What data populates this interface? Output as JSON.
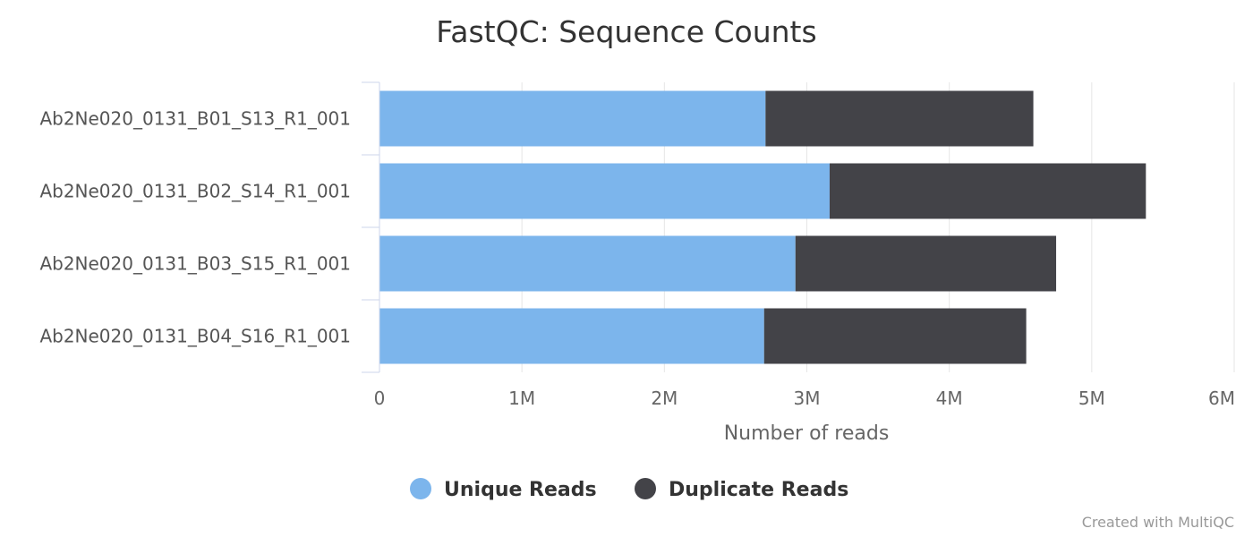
{
  "chart_data": {
    "type": "bar",
    "orientation": "horizontal",
    "stacked": true,
    "title": "FastQC: Sequence Counts",
    "xlabel": "Number of reads",
    "ylabel": "",
    "xlim": [
      0,
      6000000
    ],
    "x_ticks": [
      0,
      1000000,
      2000000,
      3000000,
      4000000,
      5000000,
      6000000
    ],
    "x_tick_labels": [
      "0",
      "1M",
      "2M",
      "3M",
      "4M",
      "5M",
      "6M"
    ],
    "grid": true,
    "legend_position": "bottom",
    "categories": [
      "Ab2Ne020_0131_B01_S13_R1_001",
      "Ab2Ne020_0131_B02_S14_R1_001",
      "Ab2Ne020_0131_B03_S15_R1_001",
      "Ab2Ne020_0131_B04_S16_R1_001"
    ],
    "series": [
      {
        "name": "Unique Reads",
        "color": "#7cb5ec",
        "values": [
          2710000,
          3160000,
          2920000,
          2700000
        ]
      },
      {
        "name": "Duplicate Reads",
        "color": "#434348",
        "values": [
          1880000,
          2220000,
          1830000,
          1840000
        ]
      }
    ]
  },
  "credit": "Created with MultiQC"
}
